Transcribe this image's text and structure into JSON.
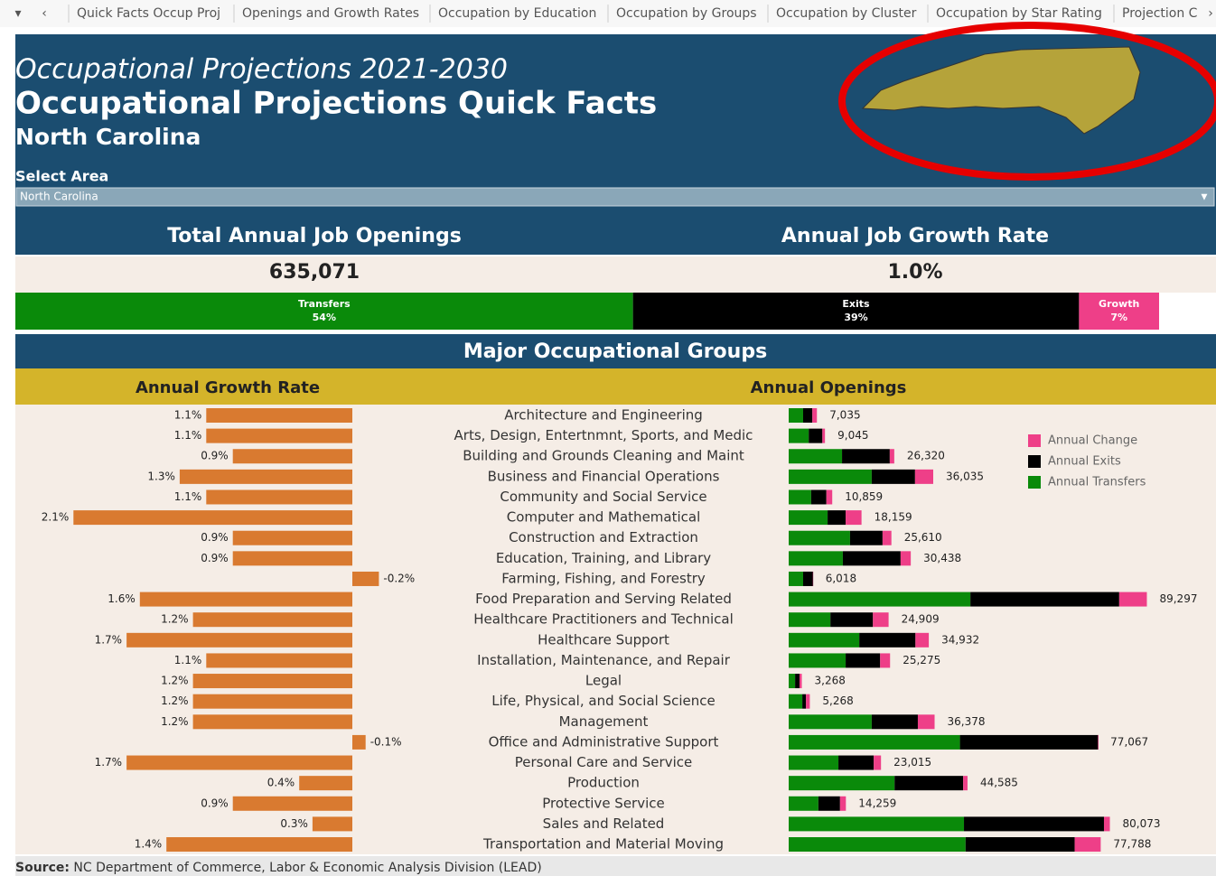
{
  "tabs": [
    "Quick Facts Occup Proj",
    "Openings and Growth Rates",
    "Occupation by Education",
    "Occupation by Groups",
    "Occupation by Cluster",
    "Occupation by Star Rating",
    "Projection C"
  ],
  "header": {
    "subtitle": "Occupational Projections 2021-2030",
    "title": "Occupational Projections Quick Facts",
    "area": "North Carolina"
  },
  "select": {
    "label": "Select Area",
    "value": "North Carolina"
  },
  "kpis": [
    {
      "title": "Total Annual Job Openings",
      "value": "635,071"
    },
    {
      "title": "Annual Job Growth Rate",
      "value": "1.0%"
    }
  ],
  "openings_mix": {
    "type": "bar",
    "categories": [
      "Transfers",
      "Exits",
      "Growth"
    ],
    "values": [
      54,
      39,
      7
    ],
    "value_labels": [
      "54%",
      "39%",
      "7%"
    ],
    "colors": [
      "#0a8a0a",
      "#000000",
      "#ee3f88"
    ],
    "xlim": [
      0,
      100
    ]
  },
  "groups": {
    "title": "Major Occupational Groups",
    "categories": [
      "Architecture and Engineering",
      "Arts, Design, Entertnmnt, Sports, and Medic",
      "Building and Grounds Cleaning and Maint",
      "Business and Financial Operations",
      "Community and Social Service",
      "Computer and Mathematical",
      "Construction and Extraction",
      "Education, Training, and Library",
      "Farming, Fishing, and Forestry",
      "Food Preparation and Serving Related",
      "Healthcare Practitioners and Technical",
      "Healthcare Support",
      "Installation, Maintenance, and Repair",
      "Legal",
      "Life, Physical, and Social Science",
      "Management",
      "Office and Administrative Support",
      "Personal Care and Service",
      "Production",
      "Protective Service",
      "Sales and Related",
      "Transportation and Material Moving"
    ],
    "growth": {
      "type": "bar",
      "title": "Annual Growth Rate",
      "color": "#d97a30",
      "xlim": [
        2.2,
        -0.3
      ],
      "values": [
        1.1,
        1.1,
        0.9,
        1.3,
        1.1,
        2.1,
        0.9,
        0.9,
        -0.2,
        1.6,
        1.2,
        1.7,
        1.1,
        1.2,
        1.2,
        1.2,
        -0.1,
        1.7,
        0.4,
        0.9,
        0.3,
        1.4
      ],
      "value_labels": [
        "1.1%",
        "1.1%",
        "0.9%",
        "1.3%",
        "1.1%",
        "2.1%",
        "0.9%",
        "0.9%",
        "-0.2%",
        "1.6%",
        "1.2%",
        "1.7%",
        "1.1%",
        "1.2%",
        "1.2%",
        "1.2%",
        "-0.1%",
        "1.7%",
        "0.4%",
        "0.9%",
        "0.3%",
        "1.4%"
      ]
    },
    "openings": {
      "type": "stacked_bar",
      "title": "Annual Openings",
      "xlim": [
        0,
        100000
      ],
      "series": [
        {
          "name": "Annual Transfers",
          "color": "#0a8a0a",
          "values": [
            3600,
            5000,
            13300,
            20700,
            5600,
            9700,
            15300,
            13500,
            3600,
            45300,
            10400,
            17600,
            14200,
            1600,
            3400,
            20700,
            42700,
            12400,
            26400,
            7400,
            43700,
            44100
          ]
        },
        {
          "name": "Annual Exits",
          "color": "#000000",
          "values": [
            2300,
            3400,
            11900,
            10800,
            3800,
            4500,
            8100,
            14400,
            2500,
            37100,
            10600,
            14000,
            8600,
            1100,
            900,
            11500,
            34500,
            8800,
            17100,
            5400,
            34900,
            27200
          ]
        },
        {
          "name": "Annual Change",
          "color": "#ee3f88",
          "values": [
            1135,
            645,
            1120,
            4535,
            1459,
            3959,
            2210,
            2538,
            -82,
            6897,
            3909,
            3332,
            2475,
            568,
            968,
            4178,
            -133,
            1815,
            1085,
            1459,
            1473,
            6488
          ]
        }
      ],
      "totals": [
        7035,
        9045,
        26320,
        36035,
        10859,
        18159,
        25610,
        30438,
        6018,
        89297,
        24909,
        34932,
        25275,
        3268,
        5268,
        36378,
        77067,
        23015,
        44585,
        14259,
        80073,
        77788
      ],
      "total_labels": [
        "7,035",
        "9,045",
        "26,320",
        "36,035",
        "10,859",
        "18,159",
        "25,610",
        "30,438",
        "6,018",
        "89,297",
        "24,909",
        "34,932",
        "25,275",
        "3,268",
        "5,268",
        "36,378",
        "77,067",
        "23,015",
        "44,585",
        "14,259",
        "80,073",
        "77,788"
      ]
    }
  },
  "source": {
    "label": "Source:",
    "text": "NC Department of Commerce, Labor & Economic Analysis Division (LEAD)"
  }
}
